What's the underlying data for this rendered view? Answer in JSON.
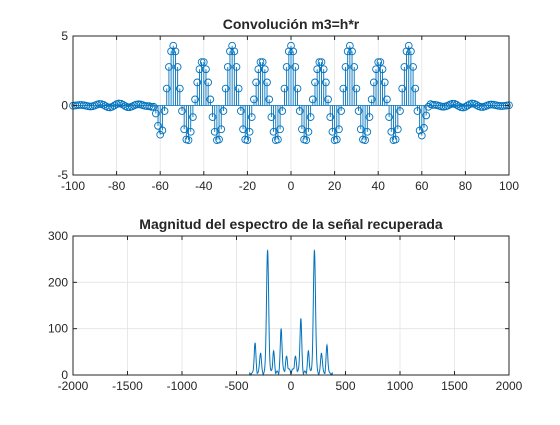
{
  "chart_data": [
    {
      "type": "stem",
      "title": "Convolución m3=h*r",
      "xlim": [
        -100,
        100
      ],
      "ylim": [
        -5,
        5
      ],
      "xticks": [
        -100,
        -80,
        -60,
        -40,
        -20,
        0,
        20,
        40,
        60,
        80,
        100
      ],
      "yticks": [
        -5,
        0,
        5
      ],
      "xtick_labels": [
        "-100",
        "-80",
        "-60",
        "-40",
        "-20",
        "0",
        "20",
        "40",
        "60",
        "80",
        "100"
      ],
      "ytick_labels": [
        "-5",
        "0",
        "5"
      ],
      "grid": true,
      "color": "#0072BD",
      "x_step": 1,
      "envelope": {
        "outer_amplitude": 0.15,
        "ramp_up": [
          -64,
          -58
        ],
        "ramp_down": [
          58,
          64
        ],
        "inner_peak_offset": 0.6,
        "inner_amplitude": 3.7,
        "period": 13.5,
        "phase_center": 0
      }
    },
    {
      "type": "line",
      "title": "Magnitud del espectro de la señal recuperada",
      "xlim": [
        -2000,
        2000
      ],
      "ylim": [
        0,
        300
      ],
      "xticks": [
        -2000,
        -1500,
        -1000,
        -500,
        0,
        500,
        1000,
        1500,
        2000
      ],
      "yticks": [
        0,
        100,
        200,
        300
      ],
      "xtick_labels": [
        "-2000",
        "-1500",
        "-1000",
        "-500",
        "0",
        "500",
        "1000",
        "1500",
        "2000"
      ],
      "ytick_labels": [
        "0",
        "100",
        "200",
        "300"
      ],
      "grid": true,
      "color": "#0072BD",
      "peaks": [
        {
          "x": -330,
          "y": 65,
          "w": 8
        },
        {
          "x": -280,
          "y": 45,
          "w": 8
        },
        {
          "x": -215,
          "y": 263,
          "w": 10
        },
        {
          "x": -160,
          "y": 45,
          "w": 8
        },
        {
          "x": -90,
          "y": 95,
          "w": 8
        },
        {
          "x": -40,
          "y": 30,
          "w": 10
        },
        {
          "x": 40,
          "y": 30,
          "w": 10
        },
        {
          "x": 90,
          "y": 117,
          "w": 8
        },
        {
          "x": 160,
          "y": 45,
          "w": 8
        },
        {
          "x": 215,
          "y": 263,
          "w": 10
        },
        {
          "x": 280,
          "y": 45,
          "w": 8
        },
        {
          "x": 330,
          "y": 60,
          "w": 8
        }
      ]
    }
  ]
}
